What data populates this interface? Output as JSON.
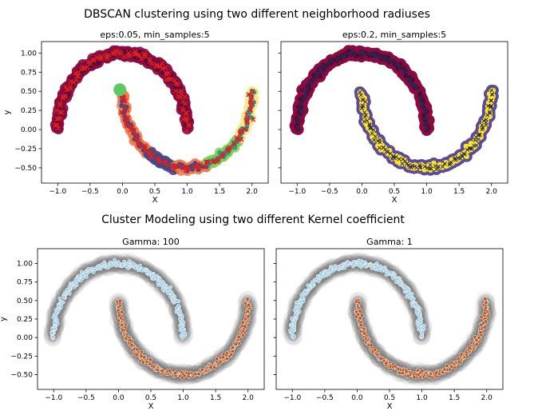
{
  "figure": {
    "title_top": "DBSCAN clustering using two different neighborhood radiuses",
    "title_bottom": "Cluster Modeling using two different Kernel coefficient"
  },
  "chart_data": [
    {
      "type": "scatter",
      "title": "eps:0.05, min_samples:5",
      "xlabel": "X",
      "ylabel": "y",
      "xlim": [
        -1.25,
        2.25
      ],
      "ylim": [
        -0.7,
        1.15
      ],
      "xticks": [
        -1.0,
        -0.5,
        0.0,
        0.5,
        1.0,
        1.5,
        2.0
      ],
      "yticks": [
        -0.5,
        -0.25,
        0.0,
        0.25,
        0.5,
        0.75,
        1.0
      ],
      "grid": false,
      "colors": {
        "upper_moon": "#8c0a3f",
        "cluster_a": "#f07a4a",
        "cluster_b": "#3e4a89",
        "cluster_c": "#2a9d8f",
        "cluster_d": "#7ad151",
        "cluster_e": "#fde68a",
        "small_cluster": "#5ec962",
        "noise": "#e02020"
      },
      "series": [
        {
          "values": [
            [
              -1.0,
              0.03
            ],
            [
              -0.9,
              0.42
            ],
            [
              -0.7,
              0.72
            ],
            [
              -0.45,
              0.9
            ],
            [
              -0.2,
              1.0
            ],
            [
              0.0,
              1.02
            ],
            [
              0.25,
              0.98
            ],
            [
              0.5,
              0.88
            ],
            [
              0.7,
              0.72
            ],
            [
              0.88,
              0.45
            ],
            [
              1.0,
              0.05
            ]
          ]
        },
        {
          "values": [
            [
              0.0,
              0.45
            ],
            [
              0.1,
              0.1
            ],
            [
              0.25,
              -0.18
            ],
            [
              0.45,
              -0.38
            ],
            [
              0.7,
              -0.48
            ],
            [
              0.95,
              -0.5
            ]
          ]
        },
        {
          "values": [
            [
              1.0,
              -0.48
            ],
            [
              1.3,
              -0.38
            ],
            [
              1.55,
              -0.2
            ],
            [
              1.75,
              0.05
            ],
            [
              1.9,
              0.3
            ],
            [
              2.0,
              0.45
            ]
          ]
        },
        {
          "values": [
            [
              -0.04,
              0.52
            ]
          ]
        }
      ]
    },
    {
      "type": "scatter",
      "title": "eps:0.2, min_samples:5",
      "xlabel": "X",
      "xlim": [
        -1.25,
        2.25
      ],
      "ylim": [
        -0.7,
        1.15
      ],
      "xticks": [
        -1.0,
        -0.5,
        0.0,
        0.5,
        1.0,
        1.5,
        2.0
      ],
      "grid": false,
      "colors": {
        "upper_moon": "#8c0a3f",
        "lower_moon": "#fde725",
        "lower_moon_outline": "#5b4a9b"
      },
      "series": [
        {
          "values": [
            [
              -1.0,
              0.03
            ],
            [
              -0.7,
              0.72
            ],
            [
              -0.2,
              1.0
            ],
            [
              0.25,
              0.98
            ],
            [
              0.7,
              0.72
            ],
            [
              1.0,
              0.05
            ]
          ]
        },
        {
          "values": [
            [
              0.0,
              0.45
            ],
            [
              0.25,
              -0.18
            ],
            [
              0.7,
              -0.48
            ],
            [
              1.3,
              -0.38
            ],
            [
              1.75,
              0.05
            ],
            [
              2.0,
              0.45
            ]
          ]
        }
      ]
    },
    {
      "type": "scatter",
      "title": "Gamma: 100",
      "xlabel": "X",
      "ylabel": "y",
      "xlim": [
        -1.25,
        2.25
      ],
      "ylim": [
        -0.7,
        1.2
      ],
      "xticks": [
        -1.0,
        -0.5,
        0.0,
        0.5,
        1.0,
        1.5,
        2.0
      ],
      "yticks": [
        -0.5,
        -0.25,
        0.0,
        0.25,
        0.5,
        0.75,
        1.0
      ],
      "grid": false,
      "colors": {
        "upper_moon": "#a6cee3",
        "lower_moon": "#b15928",
        "halo": "#7f7f7f"
      },
      "series": [
        {
          "values": [
            [
              -1.0,
              0.03
            ],
            [
              -0.7,
              0.72
            ],
            [
              -0.2,
              1.0
            ],
            [
              0.25,
              0.98
            ],
            [
              0.7,
              0.72
            ],
            [
              1.0,
              0.05
            ]
          ]
        },
        {
          "values": [
            [
              0.0,
              0.45
            ],
            [
              0.25,
              -0.18
            ],
            [
              0.7,
              -0.48
            ],
            [
              1.3,
              -0.38
            ],
            [
              1.75,
              0.05
            ],
            [
              2.0,
              0.45
            ]
          ]
        }
      ]
    },
    {
      "type": "scatter",
      "title": "Gamma: 1",
      "xlabel": "X",
      "xlim": [
        -1.25,
        2.25
      ],
      "ylim": [
        -0.7,
        1.2
      ],
      "xticks": [
        -1.0,
        -0.5,
        0.0,
        0.5,
        1.0,
        1.5,
        2.0
      ],
      "grid": false,
      "colors": {
        "upper_moon": "#a6cee3",
        "lower_moon": "#b15928",
        "halo": "#7f7f7f"
      },
      "series": [
        {
          "values": [
            [
              -1.0,
              0.03
            ],
            [
              -0.7,
              0.72
            ],
            [
              -0.2,
              1.0
            ],
            [
              0.25,
              0.98
            ],
            [
              0.7,
              0.72
            ],
            [
              1.0,
              0.05
            ]
          ]
        },
        {
          "values": [
            [
              0.0,
              0.45
            ],
            [
              0.25,
              -0.18
            ],
            [
              0.7,
              -0.48
            ],
            [
              1.3,
              -0.38
            ],
            [
              1.75,
              0.05
            ],
            [
              2.0,
              0.45
            ]
          ]
        }
      ]
    }
  ]
}
